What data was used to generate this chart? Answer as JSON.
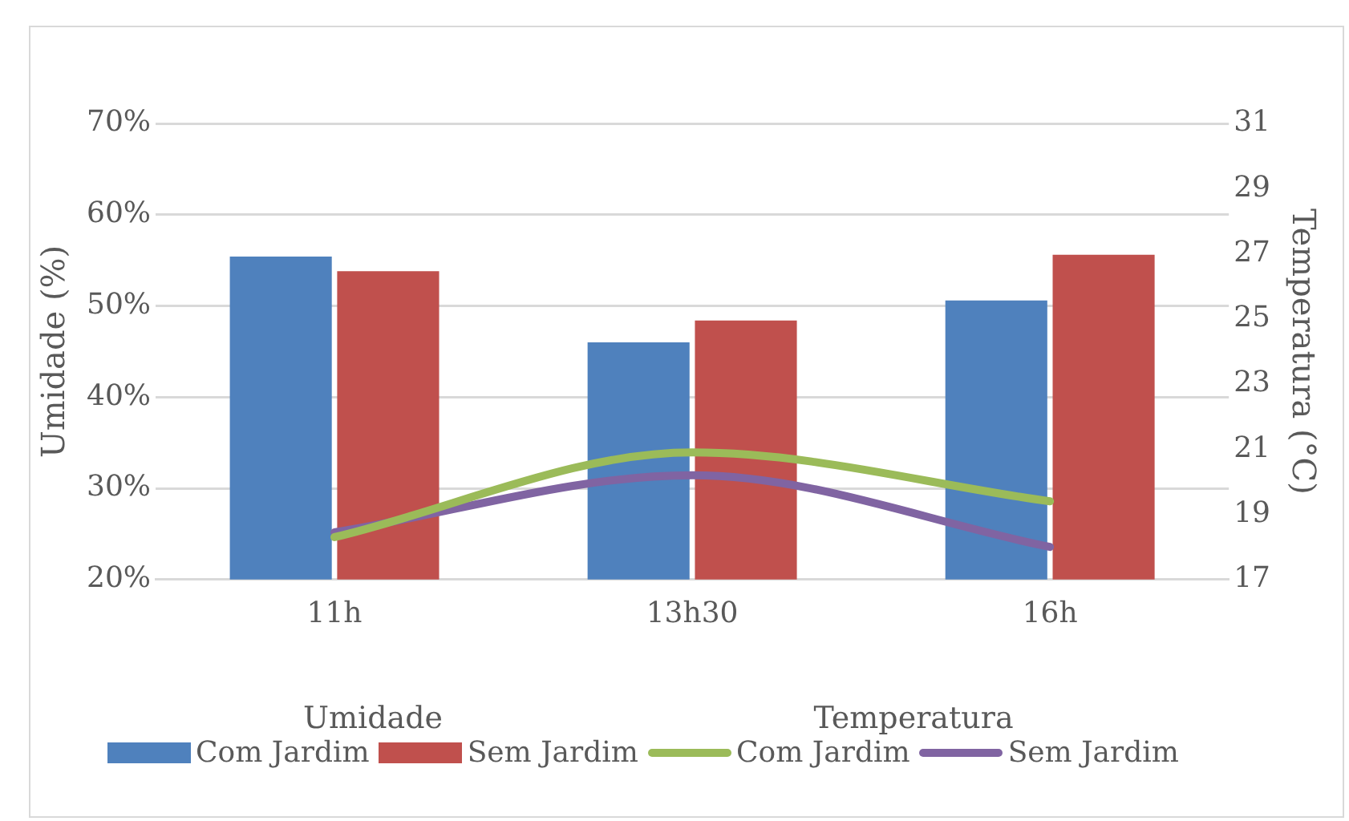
{
  "chart_data": {
    "type": "bar",
    "categories": [
      "11h",
      "13h30",
      "16h"
    ],
    "ylabel": "Umidade (%)",
    "y2label": "Temperatura (°C)",
    "ylim": [
      20,
      70
    ],
    "yticks": [
      {
        "value": 20,
        "label": "20%"
      },
      {
        "value": 30,
        "label": "30%"
      },
      {
        "value": 40,
        "label": "40%"
      },
      {
        "value": 50,
        "label": "50%"
      },
      {
        "value": 60,
        "label": "60%"
      },
      {
        "value": 70,
        "label": "70%"
      }
    ],
    "y2lim": [
      17,
      31
    ],
    "y2ticks": [
      17,
      19,
      21,
      23,
      25,
      27,
      29,
      31
    ],
    "grid": "y",
    "legend": "bottom",
    "annotations": [
      "Umidade",
      "Temperatura"
    ],
    "series": [
      {
        "name": "Com Jardim",
        "color": "#4f81bd",
        "values": [
          55.4,
          46,
          50.6
        ]
      },
      {
        "name": "Sem Jardim",
        "color": "#c0504d",
        "values": [
          53.8,
          48.4,
          55.6
        ]
      },
      {
        "name": "Com Jardim",
        "type": "line",
        "axis": "y2",
        "color": "#9bbb59",
        "values": [
          18.3,
          20.9,
          19.4
        ]
      },
      {
        "name": "Sem Jardim",
        "type": "line",
        "axis": "y2",
        "color": "#8064a2",
        "values": [
          18.45,
          20.2,
          18
        ]
      }
    ]
  }
}
